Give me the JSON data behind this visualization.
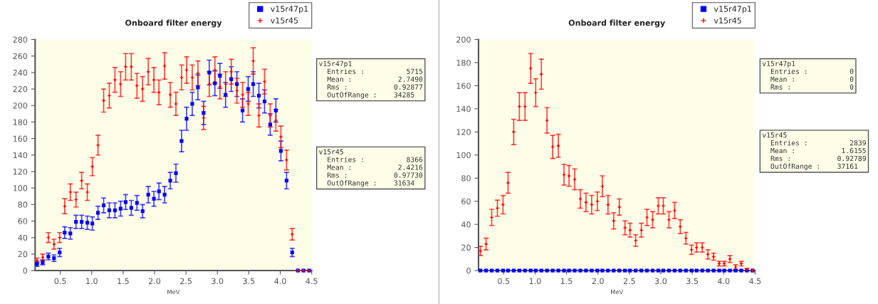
{
  "chart_data": [
    {
      "type": "scatter",
      "title": "Onboard filter energy",
      "xlabel": "MeV",
      "xlim": [
        0.1,
        4.5
      ],
      "xticks": [
        0.5,
        {
          "value": 1,
          "label": "1.0"
        },
        1.5,
        {
          "value": 2,
          "label": "2.0"
        },
        2.5,
        {
          "value": 3,
          "label": "3.0"
        },
        3.5,
        {
          "value": 4,
          "label": "4.0"
        },
        4.5
      ],
      "ylim": [
        0,
        280
      ],
      "yticks": [
        0,
        20,
        40,
        60,
        80,
        100,
        120,
        140,
        160,
        180,
        200,
        220,
        240,
        260,
        280
      ],
      "grid": false,
      "legend": "top right",
      "x": [
        0.13,
        0.22,
        0.31,
        0.4,
        0.49,
        0.57,
        0.66,
        0.75,
        0.84,
        0.93,
        1.01,
        1.1,
        1.19,
        1.28,
        1.37,
        1.46,
        1.54,
        1.63,
        1.72,
        1.81,
        1.9,
        1.99,
        2.07,
        2.16,
        2.25,
        2.34,
        2.43,
        2.51,
        2.6,
        2.69,
        2.78,
        2.87,
        2.96,
        3.04,
        3.13,
        3.22,
        3.31,
        3.4,
        3.49,
        3.57,
        3.66,
        3.75,
        3.84,
        3.93,
        4.01,
        4.1,
        4.19,
        4.28,
        4.37,
        4.46
      ],
      "series": [
        {
          "name": "v15r47p1",
          "color": "#0000ff",
          "marker": "square",
          "values": [
            8,
            10,
            17,
            15,
            22,
            46,
            45,
            59,
            59,
            58,
            57,
            70,
            79,
            73,
            73,
            75,
            83,
            76,
            82,
            72,
            92,
            87,
            96,
            92,
            109,
            118,
            157,
            184,
            202,
            222,
            191,
            240,
            227,
            236,
            213,
            232,
            226,
            194,
            220,
            226,
            212,
            205,
            177,
            194,
            145,
            109,
            22,
            0,
            0,
            0
          ],
          "errors": [
            3,
            3,
            4,
            4,
            5,
            7,
            7,
            8,
            8,
            8,
            8,
            8,
            9,
            9,
            9,
            9,
            9,
            9,
            9,
            8,
            10,
            9,
            10,
            10,
            10,
            11,
            13,
            14,
            14,
            15,
            14,
            15,
            15,
            15,
            15,
            15,
            15,
            14,
            15,
            15,
            15,
            14,
            13,
            14,
            12,
            10,
            5,
            null,
            null,
            null
          ]
        },
        {
          "name": "v15r45",
          "color": "#ff0000",
          "marker": "cross",
          "values": [
            12,
            16,
            40,
            32,
            40,
            78,
            95,
            86,
            109,
            95,
            126,
            152,
            206,
            212,
            231,
            226,
            247,
            247,
            224,
            220,
            241,
            231,
            216,
            248,
            213,
            202,
            234,
            243,
            234,
            239,
            185,
            226,
            243,
            223,
            226,
            241,
            218,
            213,
            202,
            254,
            188,
            229,
            188,
            182,
            162,
            134,
            44,
            0,
            0,
            0
          ],
          "errors": [
            3,
            4,
            6,
            6,
            6,
            9,
            10,
            9,
            10,
            10,
            11,
            12,
            14,
            15,
            15,
            15,
            16,
            16,
            15,
            15,
            16,
            15,
            15,
            16,
            15,
            14,
            15,
            16,
            15,
            15,
            14,
            15,
            16,
            15,
            15,
            15,
            15,
            15,
            14,
            16,
            14,
            15,
            14,
            13,
            13,
            12,
            7,
            null,
            null,
            null
          ]
        }
      ],
      "annotations": [
        "v15r47p1\n  Entries :          5715\n  Mean :           2.7490\n  Rms :           0.92877\n  OutOfRange :    34285",
        "v15r45\n  Entries :          8366\n  Mean :           2.4216\n  Rms :           0.97730\n  OutOfRange :    31634"
      ]
    },
    {
      "type": "scatter",
      "title": "Onboard filter energy",
      "xlabel": "MeV",
      "xlim": [
        0.1,
        4.5
      ],
      "xticks": [
        0.5,
        {
          "value": 1,
          "label": "1.0"
        },
        1.5,
        {
          "value": 2,
          "label": "2.0"
        },
        2.5,
        {
          "value": 3,
          "label": "3.0"
        },
        3.5,
        {
          "value": 4,
          "label": "4.0"
        },
        4.5
      ],
      "ylim": [
        0,
        200
      ],
      "yticks": [
        0,
        20,
        40,
        60,
        80,
        100,
        120,
        140,
        160,
        180,
        200
      ],
      "grid": false,
      "legend": "top right",
      "x": [
        0.13,
        0.22,
        0.31,
        0.4,
        0.49,
        0.57,
        0.66,
        0.75,
        0.84,
        0.93,
        1.01,
        1.1,
        1.19,
        1.28,
        1.37,
        1.46,
        1.54,
        1.63,
        1.72,
        1.81,
        1.9,
        1.99,
        2.07,
        2.16,
        2.25,
        2.34,
        2.43,
        2.51,
        2.6,
        2.69,
        2.78,
        2.87,
        2.96,
        3.04,
        3.13,
        3.22,
        3.31,
        3.4,
        3.49,
        3.57,
        3.66,
        3.75,
        3.84,
        3.93,
        4.01,
        4.1,
        4.19,
        4.28,
        4.37,
        4.46
      ],
      "series": [
        {
          "name": "v15r47p1",
          "color": "#0000ff",
          "marker": "square",
          "values": [
            0,
            0,
            0,
            0,
            0,
            0,
            0,
            0,
            0,
            0,
            0,
            0,
            0,
            0,
            0,
            0,
            0,
            0,
            0,
            0,
            0,
            0,
            0,
            0,
            0,
            0,
            0,
            0,
            0,
            0,
            0,
            0,
            0,
            0,
            0,
            0,
            0,
            0,
            0,
            0,
            0,
            0,
            0,
            0,
            0,
            0,
            0,
            0,
            0,
            0
          ]
        },
        {
          "name": "v15r45",
          "color": "#ff0000",
          "marker": "cross",
          "values": [
            17,
            23,
            46,
            54,
            57,
            76,
            120,
            142,
            142,
            175,
            154,
            170,
            130,
            107,
            108,
            83,
            82,
            79,
            62,
            59,
            57,
            60,
            73,
            57,
            43,
            55,
            37,
            35,
            26,
            35,
            46,
            44,
            56,
            56,
            44,
            52,
            38,
            28,
            18,
            20,
            20,
            14,
            12,
            6,
            6,
            10,
            3,
            6,
            1,
            0
          ],
          "errors": [
            4,
            5,
            7,
            7,
            8,
            9,
            11,
            12,
            12,
            13,
            12,
            13,
            11,
            10,
            10,
            9,
            9,
            9,
            8,
            8,
            8,
            8,
            9,
            8,
            7,
            7,
            6,
            6,
            5,
            6,
            7,
            7,
            7,
            7,
            7,
            7,
            6,
            5,
            4,
            4,
            4,
            4,
            3,
            2,
            2,
            3,
            2,
            2,
            1,
            null
          ]
        }
      ],
      "annotations": [
        "v15r47p1\n  Entries :          0\n  Mean :             0\n  Rms :              0",
        "v15r45\n  Entries :          2839\n  Mean :           1.6155\n  Rms :           0.92789\n  OutOfRange :    37161"
      ]
    }
  ]
}
